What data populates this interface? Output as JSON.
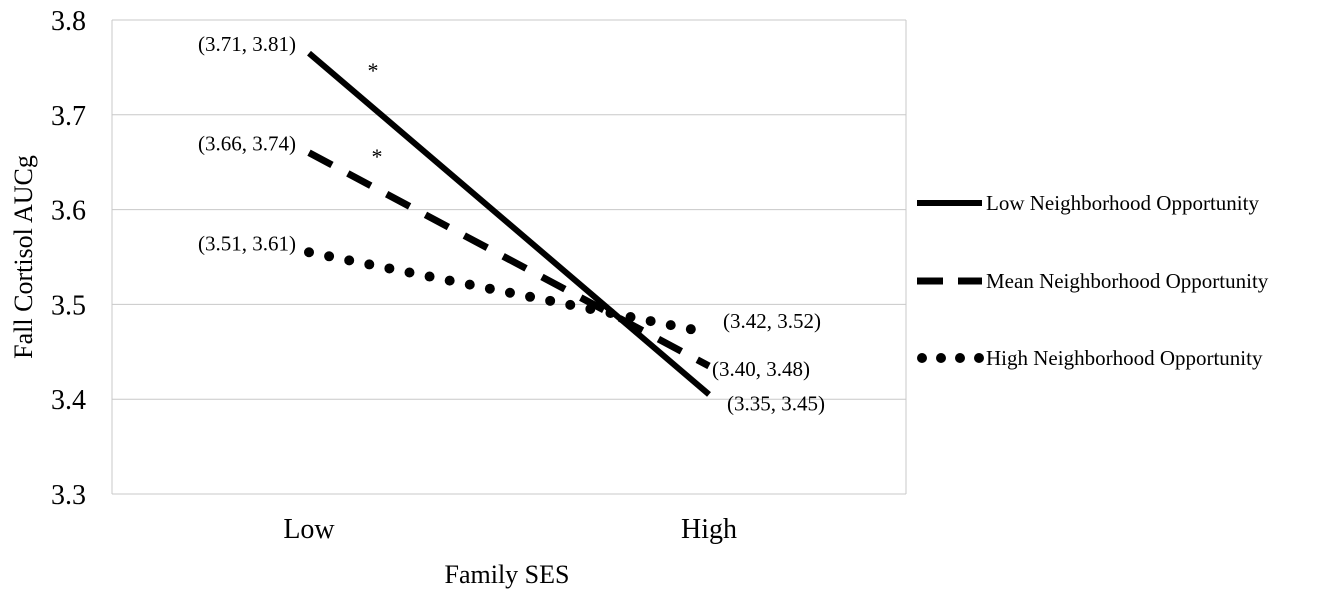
{
  "chart_data": {
    "type": "line",
    "title": "",
    "xlabel": "Family SES",
    "ylabel": "Fall Cortisol AUCg",
    "categories": [
      "Low",
      "High"
    ],
    "ylim": [
      3.3,
      3.8
    ],
    "yticks": [
      "3.3",
      "3.4",
      "3.5",
      "3.6",
      "3.7",
      "3.8"
    ],
    "grid": true,
    "legend_position": "right",
    "series": [
      {
        "name": "Low Neighborhood Opportunity",
        "style": "solid",
        "values": [
          3.765,
          3.405
        ],
        "labels": [
          "(3.71, 3.81)",
          "(3.35,  3.45)"
        ],
        "significance": [
          "*",
          ""
        ]
      },
      {
        "name": "Mean Neighborhood Opportunity",
        "style": "dashed",
        "values": [
          3.66,
          3.435
        ],
        "labels": [
          "(3.66, 3.74)",
          "(3.40, 3.48)"
        ],
        "significance": [
          "*",
          ""
        ]
      },
      {
        "name": "High Neighborhood Opportunity",
        "style": "dotted",
        "values": [
          3.555,
          3.47
        ],
        "labels": [
          "(3.51, 3.61)",
          "(3.42, 3.52)"
        ],
        "significance": [
          "",
          ""
        ]
      }
    ],
    "colors": {
      "line": "#000000",
      "grid": "#c8c8c8"
    }
  }
}
